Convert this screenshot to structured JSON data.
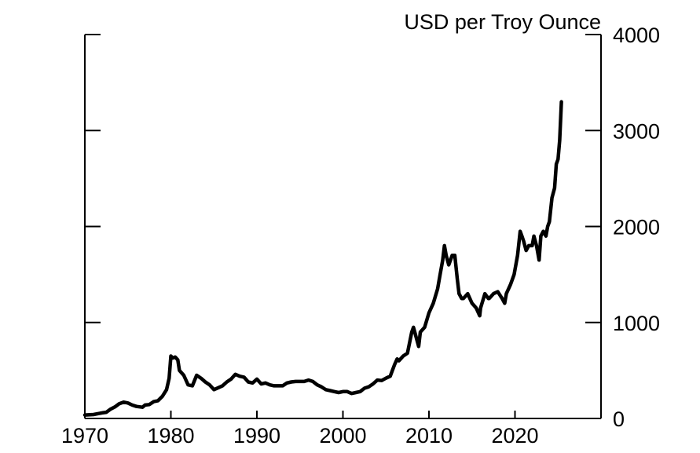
{
  "chart_data": {
    "type": "line",
    "title": "",
    "xlabel": "",
    "ylabel": "USD per Troy Ounce",
    "xlim": [
      1970,
      2030
    ],
    "ylim": [
      0,
      4000
    ],
    "x_ticks": [
      1970,
      1980,
      1990,
      2000,
      2010,
      2020
    ],
    "y_ticks": [
      0,
      1000,
      2000,
      3000,
      4000
    ],
    "x_tick_labels": [
      "1970",
      "1980",
      "1990",
      "2000",
      "2010",
      "2020"
    ],
    "y_tick_labels": [
      "0",
      "1000",
      "2000",
      "3000",
      "4000"
    ],
    "y_axis_side": "right",
    "grid": false,
    "legend": "none",
    "line_color": "#000000",
    "series": [
      {
        "x": [
          1970.0,
          1971.0,
          1972.0,
          1972.5,
          1973.0,
          1973.5,
          1974.0,
          1974.5,
          1975.0,
          1975.5,
          1976.0,
          1976.7,
          1977.0,
          1977.5,
          1978.0,
          1978.5,
          1979.0,
          1979.5,
          1979.8,
          1980.0,
          1980.2,
          1980.5,
          1980.8,
          1981.0,
          1981.5,
          1982.0,
          1982.5,
          1983.0,
          1983.5,
          1984.0,
          1984.5,
          1985.0,
          1985.5,
          1986.0,
          1986.5,
          1987.0,
          1987.5,
          1988.0,
          1988.5,
          1989.0,
          1989.5,
          1990.0,
          1990.5,
          1991.0,
          1991.5,
          1992.0,
          1992.5,
          1993.0,
          1993.5,
          1994.0,
          1994.5,
          1995.0,
          1995.5,
          1996.0,
          1996.5,
          1997.0,
          1997.5,
          1998.0,
          1998.5,
          1999.0,
          1999.5,
          2000.0,
          2000.5,
          2001.0,
          2001.5,
          2002.0,
          2002.5,
          2003.0,
          2003.5,
          2004.0,
          2004.5,
          2005.0,
          2005.5,
          2006.0,
          2006.3,
          2006.5,
          2007.0,
          2007.5,
          2008.0,
          2008.2,
          2008.5,
          2008.8,
          2009.0,
          2009.5,
          2010.0,
          2010.5,
          2011.0,
          2011.3,
          2011.6,
          2011.8,
          2012.0,
          2012.3,
          2012.7,
          2013.0,
          2013.3,
          2013.5,
          2013.8,
          2014.0,
          2014.5,
          2015.0,
          2015.5,
          2015.9,
          2016.0,
          2016.5,
          2016.9,
          2017.0,
          2017.5,
          2018.0,
          2018.5,
          2018.8,
          2019.0,
          2019.5,
          2019.9,
          2020.0,
          2020.3,
          2020.6,
          2020.8,
          2021.0,
          2021.3,
          2021.6,
          2022.0,
          2022.2,
          2022.5,
          2022.8,
          2023.0,
          2023.3,
          2023.6,
          2023.8,
          2024.0,
          2024.3,
          2024.6,
          2024.8,
          2025.0,
          2025.2,
          2025.4
        ],
        "y": [
          36,
          41,
          58,
          65,
          97,
          120,
          154,
          170,
          161,
          140,
          125,
          117,
          140,
          145,
          175,
          185,
          230,
          300,
          420,
          650,
          630,
          640,
          610,
          500,
          450,
          350,
          340,
          450,
          420,
          380,
          350,
          300,
          320,
          340,
          380,
          410,
          460,
          440,
          430,
          380,
          370,
          410,
          360,
          370,
          350,
          340,
          340,
          340,
          370,
          380,
          385,
          385,
          385,
          400,
          385,
          350,
          330,
          300,
          290,
          280,
          270,
          280,
          280,
          260,
          270,
          280,
          315,
          330,
          360,
          400,
          395,
          420,
          440,
          560,
          620,
          600,
          650,
          680,
          900,
          950,
          850,
          750,
          900,
          950,
          1100,
          1200,
          1350,
          1500,
          1650,
          1800,
          1700,
          1600,
          1700,
          1700,
          1450,
          1300,
          1250,
          1250,
          1300,
          1200,
          1150,
          1070,
          1150,
          1300,
          1250,
          1250,
          1300,
          1320,
          1250,
          1200,
          1300,
          1400,
          1500,
          1550,
          1700,
          1950,
          1900,
          1850,
          1750,
          1800,
          1800,
          1900,
          1800,
          1650,
          1900,
          1950,
          1900,
          2000,
          2050,
          2300,
          2400,
          2650,
          2700,
          2900,
          3300
        ]
      }
    ]
  }
}
